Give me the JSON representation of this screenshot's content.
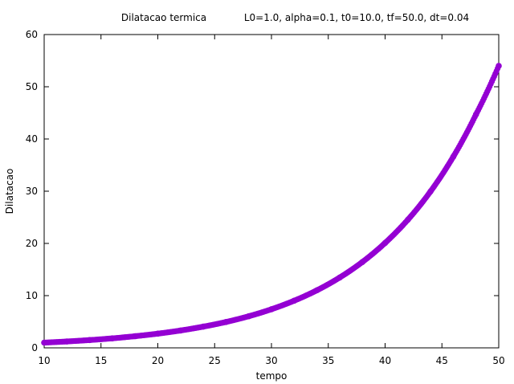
{
  "chart_data": {
    "type": "scatter",
    "title": "Dilatacao termica",
    "subtitle": "L0=1.0, alpha=0.1, t0=10.0, tf=50.0, dt=0.04",
    "xlabel": "tempo",
    "ylabel": "Dilatacao",
    "xlim": [
      10,
      50
    ],
    "ylim": [
      0,
      60
    ],
    "x_ticks": [
      "10",
      "15",
      "20",
      "25",
      "30",
      "35",
      "40",
      "45",
      "50"
    ],
    "y_ticks": [
      "0",
      "10",
      "20",
      "30",
      "40",
      "50",
      "60"
    ],
    "grid": false,
    "legend": "none",
    "series": [
      {
        "color": "#9400d3",
        "x": [
          10,
          12,
          14,
          16,
          18,
          20,
          22,
          24,
          26,
          28,
          30,
          32,
          34,
          36,
          38,
          40,
          42,
          44,
          46,
          48,
          50
        ],
        "y": [
          1.0,
          1.22,
          1.49,
          1.82,
          2.23,
          2.72,
          3.32,
          4.06,
          4.95,
          6.05,
          7.39,
          9.03,
          11.02,
          13.46,
          16.44,
          20.09,
          24.53,
          29.96,
          36.6,
          44.7,
          54.0
        ]
      }
    ]
  }
}
